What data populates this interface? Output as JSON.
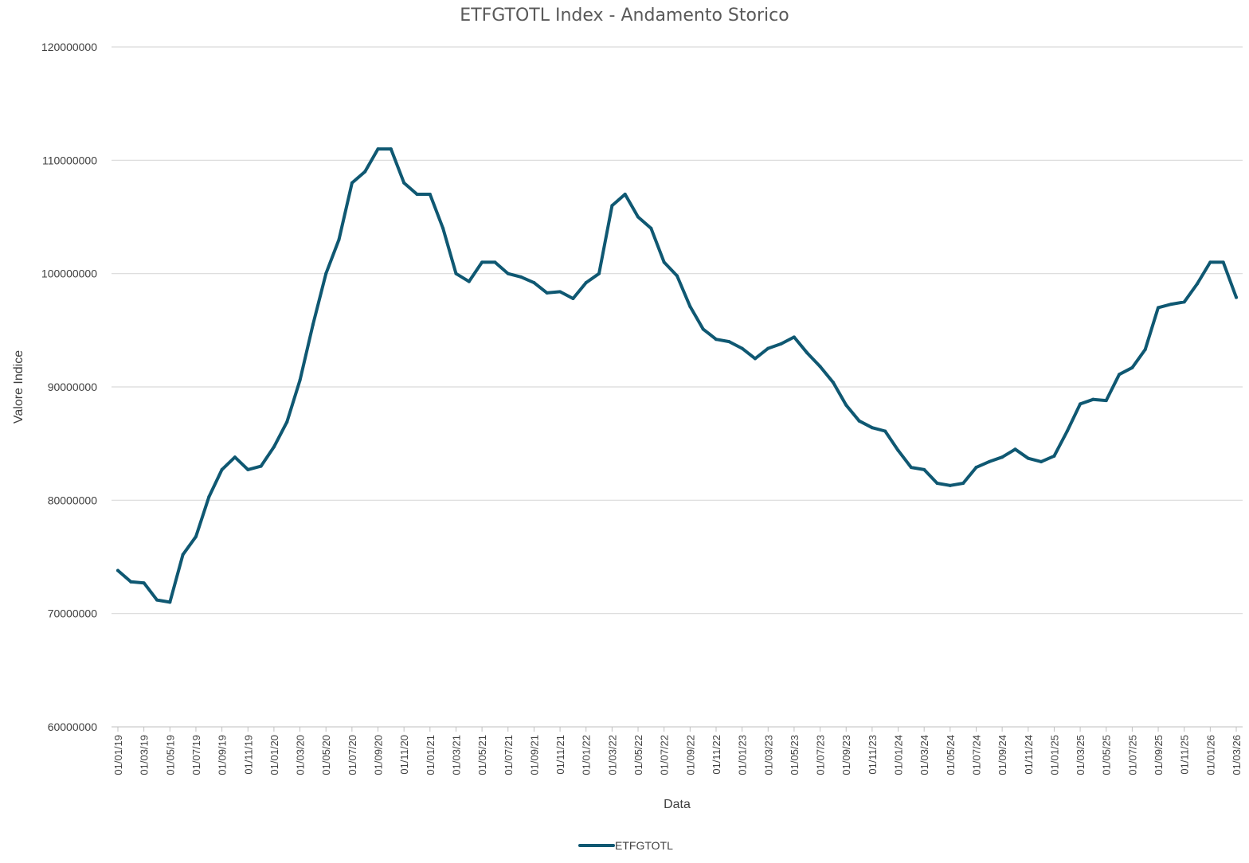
{
  "chart_data": {
    "type": "line",
    "title": "ETFGTOTL Index - Andamento Storico",
    "xlabel": "Data",
    "ylabel": "Valore Indice",
    "ylim": [
      60000000,
      120000000
    ],
    "yticks": [
      "60000000",
      "70000000",
      "80000000",
      "90000000",
      "100000000",
      "110000000",
      "120000000"
    ],
    "xticks": [
      "01/01/19",
      "01/03/19",
      "01/05/19",
      "01/07/19",
      "01/09/19",
      "01/11/19",
      "01/01/20",
      "01/03/20",
      "01/05/20",
      "01/07/20",
      "01/09/20",
      "01/11/20",
      "01/01/21",
      "01/03/21",
      "01/05/21",
      "01/07/21",
      "01/09/21",
      "01/11/21",
      "01/01/22",
      "01/03/22",
      "01/05/22",
      "01/07/22",
      "01/09/22",
      "01/11/22",
      "01/01/23",
      "01/03/23",
      "01/05/23",
      "01/07/23",
      "01/09/23",
      "01/11/23",
      "01/01/24",
      "01/03/24",
      "01/05/24",
      "01/07/24",
      "01/09/24",
      "01/11/24",
      "01/01/25",
      "01/03/25",
      "01/05/25",
      "01/07/25",
      "01/09/25",
      "01/11/25",
      "01/01/26",
      "01/03/26"
    ],
    "grid": true,
    "legend_position": "bottom",
    "series": [
      {
        "name": "ETFGTOTL",
        "color": "#0f5872",
        "values": [
          73800000,
          72800000,
          72700000,
          71200000,
          71000000,
          75200000,
          76800000,
          80300000,
          82700000,
          83800000,
          82700000,
          83000000,
          84700000,
          86900000,
          90600000,
          95500000,
          100000000,
          103000000,
          108000000,
          109000000,
          111000000,
          111000000,
          108000000,
          107000000,
          107000000,
          104000000,
          100000000,
          99300000,
          101000000,
          101000000,
          100000000,
          99700000,
          99200000,
          98300000,
          98400000,
          97800000,
          99200000,
          100000000,
          106000000,
          107000000,
          105000000,
          104000000,
          101000000,
          99800000,
          97100000,
          95100000,
          94200000,
          94000000,
          93400000,
          92500000,
          93400000,
          93800000,
          94400000,
          93000000,
          91800000,
          90400000,
          88400000,
          87000000,
          86400000,
          86100000,
          84400000,
          82900000,
          82700000,
          81500000,
          81300000,
          81500000,
          82900000,
          83400000,
          83800000,
          84500000,
          83700000,
          83400000,
          83900000,
          86100000,
          88500000,
          88900000,
          88800000,
          91100000,
          91700000,
          93300000,
          97000000,
          97300000,
          97500000,
          99100000,
          101000000,
          101000000,
          97900000
        ]
      }
    ]
  }
}
